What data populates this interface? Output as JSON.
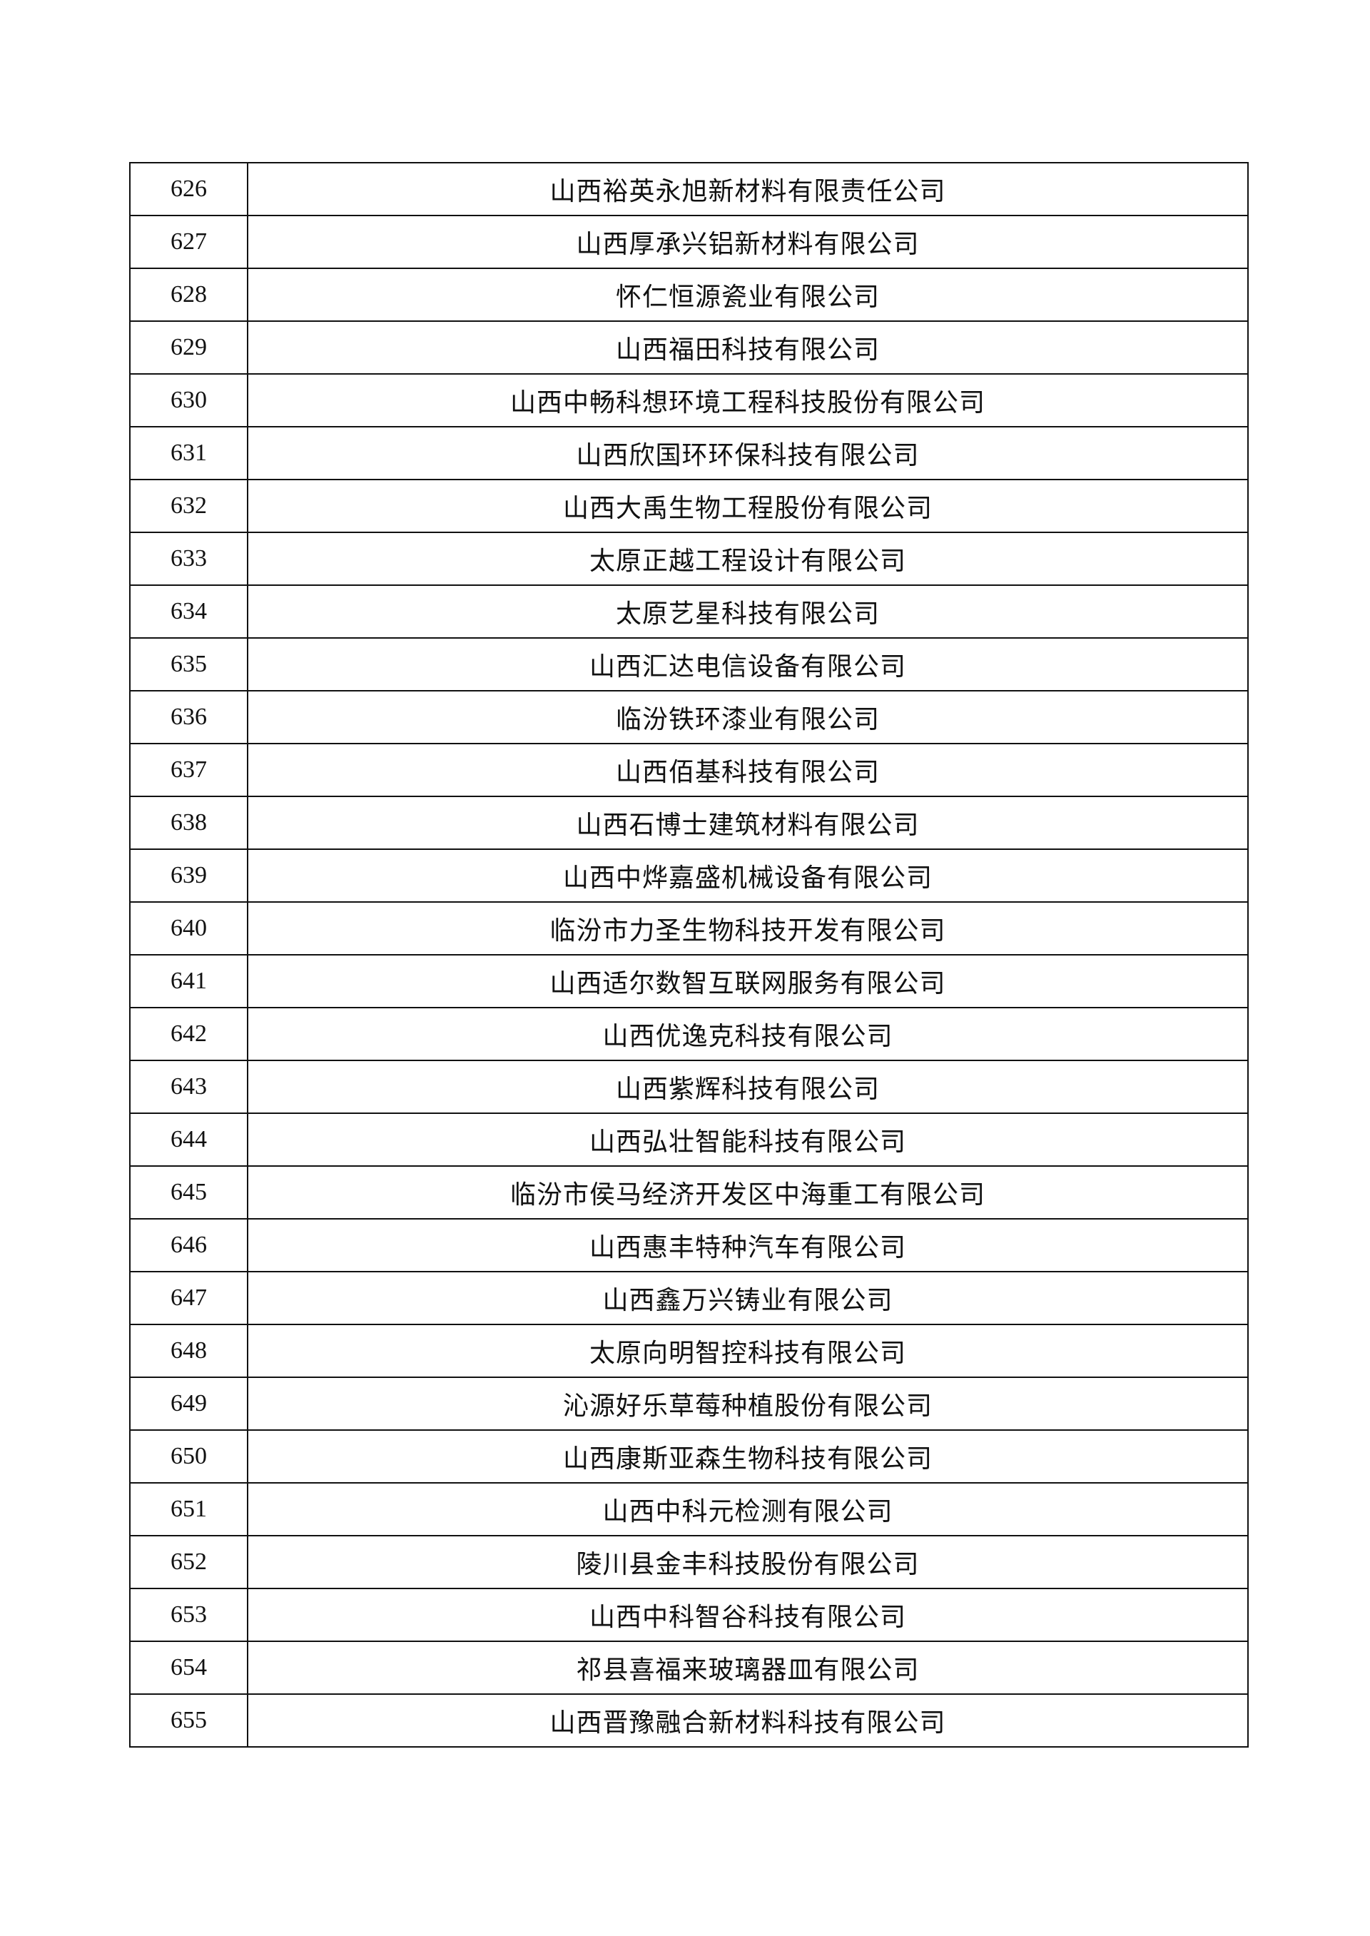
{
  "rows": [
    {
      "no": "626",
      "name": "山西裕英永旭新材料有限责任公司"
    },
    {
      "no": "627",
      "name": "山西厚承兴铝新材料有限公司"
    },
    {
      "no": "628",
      "name": "怀仁恒源瓷业有限公司"
    },
    {
      "no": "629",
      "name": "山西福田科技有限公司"
    },
    {
      "no": "630",
      "name": "山西中畅科想环境工程科技股份有限公司"
    },
    {
      "no": "631",
      "name": "山西欣国环环保科技有限公司"
    },
    {
      "no": "632",
      "name": "山西大禹生物工程股份有限公司"
    },
    {
      "no": "633",
      "name": "太原正越工程设计有限公司"
    },
    {
      "no": "634",
      "name": "太原艺星科技有限公司"
    },
    {
      "no": "635",
      "name": "山西汇达电信设备有限公司"
    },
    {
      "no": "636",
      "name": "临汾铁环漆业有限公司"
    },
    {
      "no": "637",
      "name": "山西佰基科技有限公司"
    },
    {
      "no": "638",
      "name": "山西石博士建筑材料有限公司"
    },
    {
      "no": "639",
      "name": "山西中烨嘉盛机械设备有限公司"
    },
    {
      "no": "640",
      "name": "临汾市力圣生物科技开发有限公司"
    },
    {
      "no": "641",
      "name": "山西适尔数智互联网服务有限公司"
    },
    {
      "no": "642",
      "name": "山西优逸克科技有限公司"
    },
    {
      "no": "643",
      "name": "山西紫辉科技有限公司"
    },
    {
      "no": "644",
      "name": "山西弘壮智能科技有限公司"
    },
    {
      "no": "645",
      "name": "临汾市侯马经济开发区中海重工有限公司"
    },
    {
      "no": "646",
      "name": "山西惠丰特种汽车有限公司"
    },
    {
      "no": "647",
      "name": "山西鑫万兴铸业有限公司"
    },
    {
      "no": "648",
      "name": "太原向明智控科技有限公司"
    },
    {
      "no": "649",
      "name": "沁源好乐草莓种植股份有限公司"
    },
    {
      "no": "650",
      "name": "山西康斯亚森生物科技有限公司"
    },
    {
      "no": "651",
      "name": "山西中科元检测有限公司"
    },
    {
      "no": "652",
      "name": "陵川县金丰科技股份有限公司"
    },
    {
      "no": "653",
      "name": "山西中科智谷科技有限公司"
    },
    {
      "no": "654",
      "name": "祁县喜福来玻璃器皿有限公司"
    },
    {
      "no": "655",
      "name": "山西晋豫融合新材料科技有限公司"
    }
  ]
}
